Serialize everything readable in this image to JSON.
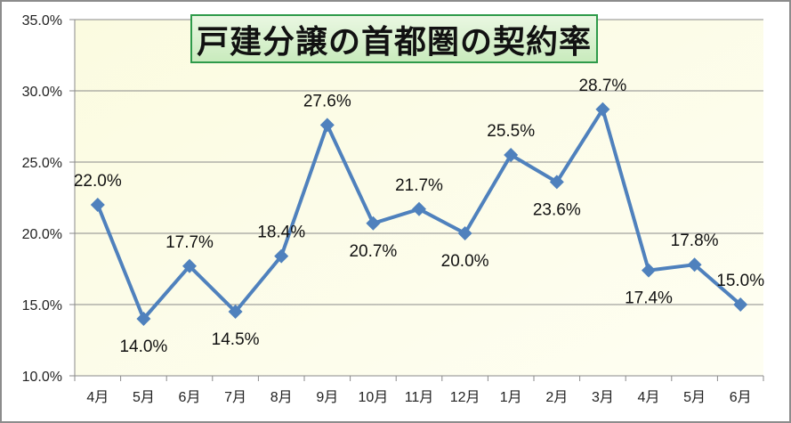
{
  "chart_data": {
    "type": "line",
    "title": "戸建分譲の首都圏の契約率",
    "categories": [
      "4月",
      "5月",
      "6月",
      "7月",
      "8月",
      "9月",
      "10月",
      "11月",
      "12月",
      "1月",
      "2月",
      "3月",
      "4月",
      "5月",
      "6月"
    ],
    "series": [
      {
        "name": "契約率",
        "values": [
          22.0,
          14.0,
          17.7,
          14.5,
          18.4,
          27.6,
          20.7,
          21.7,
          20.0,
          25.5,
          23.6,
          28.7,
          17.4,
          17.8,
          15.0
        ]
      }
    ],
    "data_labels": [
      "22.0%",
      "14.0%",
      "17.7%",
      "14.5%",
      "18.4%",
      "27.6%",
      "20.7%",
      "21.7%",
      "20.0%",
      "25.5%",
      "23.6%",
      "28.7%",
      "17.4%",
      "17.8%",
      "15.0%"
    ],
    "label_positions": [
      "above",
      "below",
      "above",
      "below",
      "above",
      "above",
      "below",
      "above",
      "below",
      "above",
      "below",
      "above",
      "below",
      "above",
      "above"
    ],
    "yticks": [
      "10.0%",
      "15.0%",
      "20.0%",
      "25.0%",
      "30.0%",
      "35.0%"
    ],
    "ylim": [
      10,
      35
    ],
    "xlabel": "",
    "ylabel": "",
    "grid": true,
    "colors": {
      "line": "#4f81bd",
      "plot_bg": "#fdfde6",
      "grid": "#8a8a8a",
      "title_border": "#2e9a4a"
    }
  }
}
